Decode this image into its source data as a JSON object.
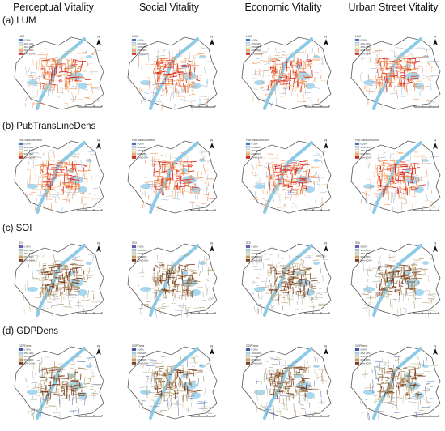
{
  "columns": [
    "Perceptual Vitality",
    "Social Vitality",
    "Economic Vitality",
    "Urban Street Vitality"
  ],
  "rows": [
    {
      "label": "(a) LUM",
      "legend_title": "LUM",
      "legend_items": [
        "0-20%",
        "20%-40%",
        "40%-60%",
        "60%-80%",
        "80%-100%"
      ],
      "legend_colors": [
        "#3b73c8",
        "#cfe3f4",
        "#fbf7d2",
        "#f5b06a",
        "#d7261e"
      ],
      "street_colors": [
        "#d7261e",
        "#f08a4b",
        "#f6c38e",
        "#b9b9b9",
        "#8fb6da"
      ]
    },
    {
      "label": "(b) PubTransLineDens",
      "legend_title": "PubTransLineDens",
      "legend_items": [
        "0-20%",
        "20%-40%",
        "40%-60%",
        "60%-80%",
        "80%-100%"
      ],
      "legend_colors": [
        "#3b73c8",
        "#cfe3f4",
        "#fbf7d2",
        "#f5b06a",
        "#d7261e"
      ],
      "street_colors": [
        "#d7261e",
        "#f08a4b",
        "#f6c38e",
        "#b9b9b9",
        "#8fb6da"
      ]
    },
    {
      "label": "(c) SOI",
      "legend_title": "SOI",
      "legend_items": [
        "0-20%",
        "20%-40%",
        "40%-60%",
        "60%-80%",
        "80%-100%"
      ],
      "legend_colors": [
        "#5b5fae",
        "#a6cfe6",
        "#d9e9a8",
        "#cf9c55",
        "#7a3b1c"
      ],
      "street_colors": [
        "#7a3b1c",
        "#a58a60",
        "#c9b98f",
        "#9fb2c9",
        "#b5b5b5"
      ]
    },
    {
      "label": "(d) GDPDens",
      "legend_title": "GDPDens",
      "legend_items": [
        "0-20%",
        "20%-40%",
        "40%-60%",
        "60%-80%",
        "80%-100%"
      ],
      "legend_colors": [
        "#3a56a8",
        "#a6cfe6",
        "#d9e9a8",
        "#cf9c55",
        "#7a3b1c"
      ],
      "street_colors": [
        "#7a3b1c",
        "#a58a60",
        "#c9b98f",
        "#5a7bc0",
        "#b5b5b5"
      ]
    }
  ],
  "north_label": "N"
}
